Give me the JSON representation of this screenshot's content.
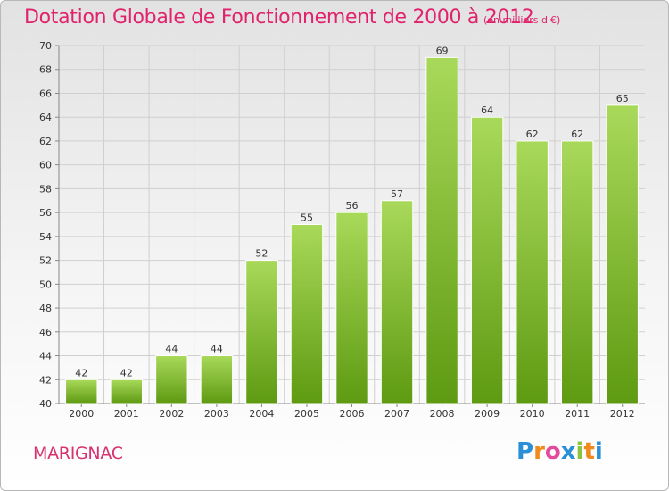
{
  "title": "Dotation Globale de Fonctionnement de 2000 à 2012",
  "subtitle": "(en milliers d'€)",
  "commune": "MARIGNAC",
  "logo": {
    "letters": [
      "P",
      "r",
      "o",
      "x",
      "i",
      "t",
      "i"
    ],
    "colors": [
      "#2a8fd6",
      "#f08a1c",
      "#e24a9b",
      "#2a8fd6",
      "#8bc53f",
      "#f08a1c",
      "#2a8fd6"
    ]
  },
  "colors": {
    "bar_top": "#a9d95a",
    "bar_bottom": "#5e9a12",
    "text": "#333333",
    "accent": "#e0236b"
  },
  "chart_data": {
    "type": "bar",
    "categories": [
      "2000",
      "2001",
      "2002",
      "2003",
      "2004",
      "2005",
      "2006",
      "2007",
      "2008",
      "2009",
      "2010",
      "2011",
      "2012"
    ],
    "values": [
      42,
      42,
      44,
      44,
      52,
      55,
      56,
      57,
      69,
      64,
      62,
      62,
      65
    ],
    "ylim": [
      40,
      70
    ],
    "yticks": [
      40,
      42,
      44,
      46,
      48,
      50,
      52,
      54,
      56,
      58,
      60,
      62,
      64,
      66,
      68,
      70
    ],
    "grid": true,
    "data_labels": true
  }
}
